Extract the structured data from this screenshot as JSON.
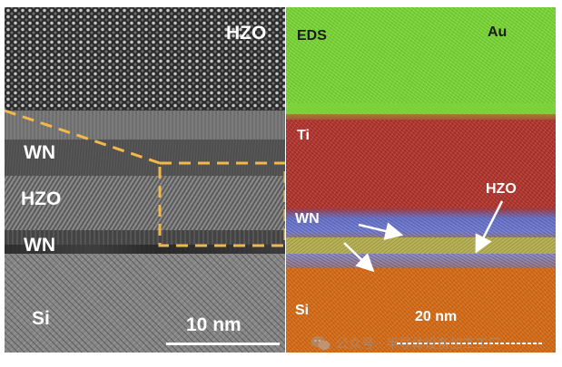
{
  "tem": {
    "inset_label": "HZO",
    "labels": [
      "WN",
      "HZO",
      "WN",
      "Si"
    ],
    "scale_bar": "10 nm"
  },
  "eds": {
    "title": "EDS",
    "labels": [
      "Au",
      "Ti",
      "WN",
      "HZO",
      "Si"
    ],
    "scale_bar": "20 nm"
  },
  "colors": {
    "zoom_box": "#f2b84b",
    "au": "#7cd33a",
    "ti": "#b23a34",
    "wn": "#7882d2",
    "hzo": "#b8b35a",
    "si": "#d56e1c"
  },
  "watermark": {
    "icon": "wechat-icon",
    "text": "公众号 · 半导体设备加工工厂"
  }
}
